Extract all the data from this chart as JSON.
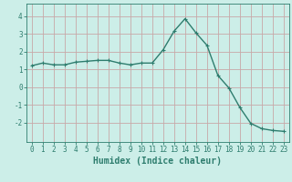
{
  "x": [
    0,
    1,
    2,
    3,
    4,
    5,
    6,
    7,
    8,
    9,
    10,
    11,
    12,
    13,
    14,
    15,
    16,
    17,
    18,
    19,
    20,
    21,
    22,
    23
  ],
  "y": [
    1.2,
    1.35,
    1.25,
    1.25,
    1.4,
    1.45,
    1.5,
    1.5,
    1.35,
    1.25,
    1.35,
    1.35,
    2.1,
    3.15,
    3.85,
    3.05,
    2.35,
    0.65,
    -0.05,
    -1.15,
    -2.05,
    -2.35,
    -2.45,
    -2.5
  ],
  "line_color": "#2e7d6e",
  "marker": "+",
  "marker_size": 3.5,
  "bg_color": "#cceee8",
  "grid_color": "#c8a8a8",
  "xlabel": "Humidex (Indice chaleur)",
  "xlabel_fontsize": 7,
  "tick_fontsize": 5.5,
  "yticks": [
    -2,
    -1,
    0,
    1,
    2,
    3,
    4
  ],
  "ylim": [
    -3.1,
    4.7
  ],
  "xlim": [
    -0.5,
    23.5
  ],
  "linewidth": 1.0
}
